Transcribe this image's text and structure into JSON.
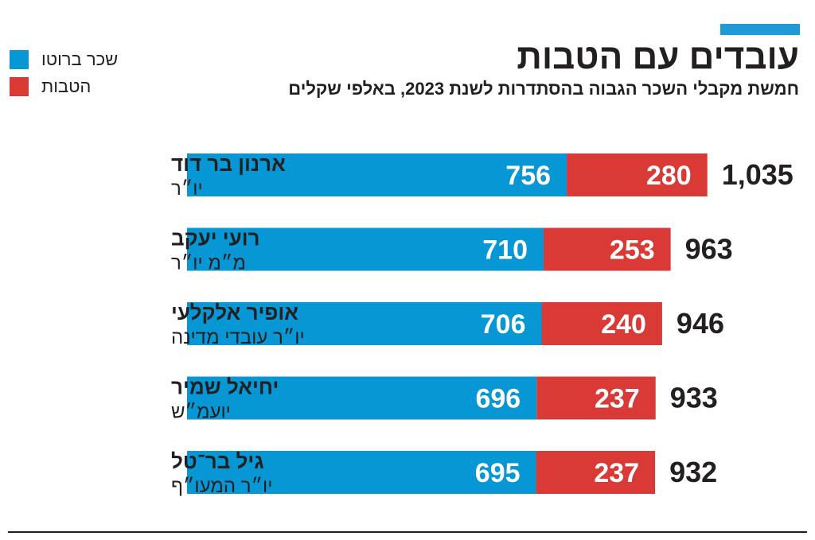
{
  "title": "עובדים עם הטבות",
  "subtitle": "חמשת מקבלי השכר הגבוה בהסתדרות לשנת 2023, באלפי שקלים",
  "legend": [
    {
      "label": "שכר ברוטו",
      "color": "#0797d4"
    },
    {
      "label": "הטבות",
      "color": "#d93a36"
    }
  ],
  "chart_data": {
    "type": "bar",
    "orientation": "horizontal",
    "stacked": true,
    "title": "עובדים עם הטבות",
    "subtitle": "חמשת מקבלי השכר הגבוה בהסתדרות לשנת 2023, באלפי שקלים",
    "categories": [
      {
        "name": "ארנון בר דוד",
        "role": "יו״ר"
      },
      {
        "name": "רועי יעקב",
        "role": "מ״מ יו״ר"
      },
      {
        "name": "אופיר אלקלעי",
        "role": "יו״ר עובדי מדינה"
      },
      {
        "name": "יחיאל שמיר",
        "role": "יועמ״ש"
      },
      {
        "name": "גיל בר־טל",
        "role": "יו״ר המעו״ף"
      }
    ],
    "series": [
      {
        "name": "שכר ברוטו",
        "color": "#0797d4",
        "values": [
          756,
          710,
          706,
          696,
          695
        ]
      },
      {
        "name": "הטבות",
        "color": "#d93a36",
        "values": [
          280,
          253,
          240,
          237,
          237
        ]
      }
    ],
    "totals": [
      "1,035",
      "963",
      "946",
      "933",
      "932"
    ],
    "legend_position": "top-left"
  }
}
